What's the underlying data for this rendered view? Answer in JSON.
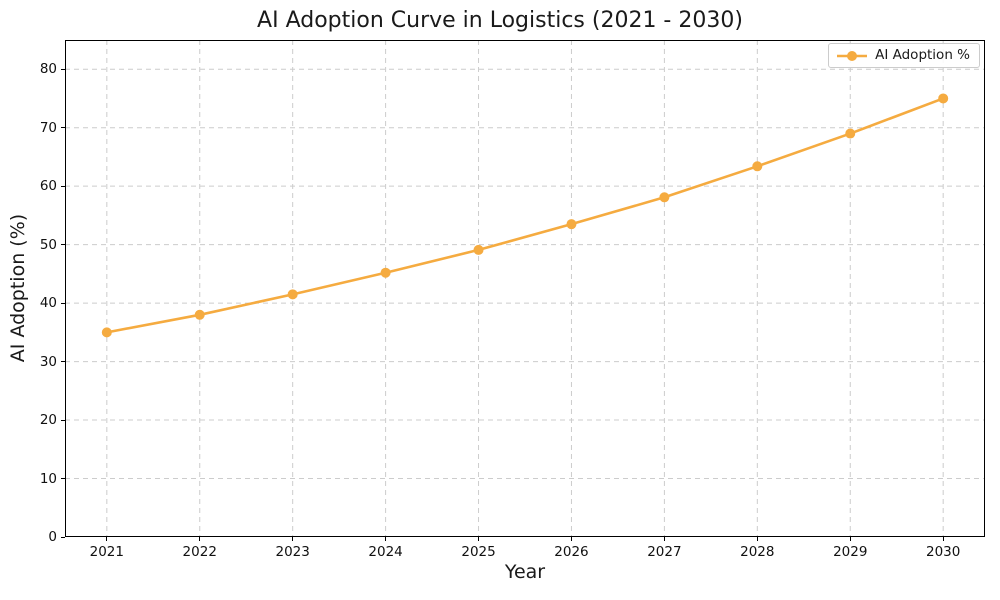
{
  "chart_data": {
    "type": "line",
    "title": "AI Adoption Curve in Logistics (2021 - 2030)",
    "xlabel": "Year",
    "ylabel": "AI Adoption (%)",
    "categories": [
      "2021",
      "2022",
      "2023",
      "2024",
      "2025",
      "2026",
      "2027",
      "2028",
      "2029",
      "2030"
    ],
    "x": [
      2021,
      2022,
      2023,
      2024,
      2025,
      2026,
      2027,
      2028,
      2029,
      2030
    ],
    "series": [
      {
        "name": "AI Adoption %",
        "values": [
          35.0,
          38.0,
          41.5,
          45.2,
          49.1,
          53.5,
          58.1,
          63.4,
          69.0,
          75.0
        ],
        "color": "#F5AB40",
        "marker": "circle",
        "line_style": "solid"
      }
    ],
    "xlim": [
      2020.55,
      2030.45
    ],
    "ylim": [
      0,
      85
    ],
    "yticks": [
      0,
      10,
      20,
      30,
      40,
      50,
      60,
      70,
      80
    ],
    "grid": true,
    "grid_style": "dashed",
    "legend_position": "upper right"
  },
  "colors": {
    "series": "#F5AB40",
    "grid": "#CCCCCC",
    "axis": "#000000",
    "text": "#1A1A1A",
    "legend_border": "#CCCCCC",
    "legend_background": "#FFFFFF"
  }
}
